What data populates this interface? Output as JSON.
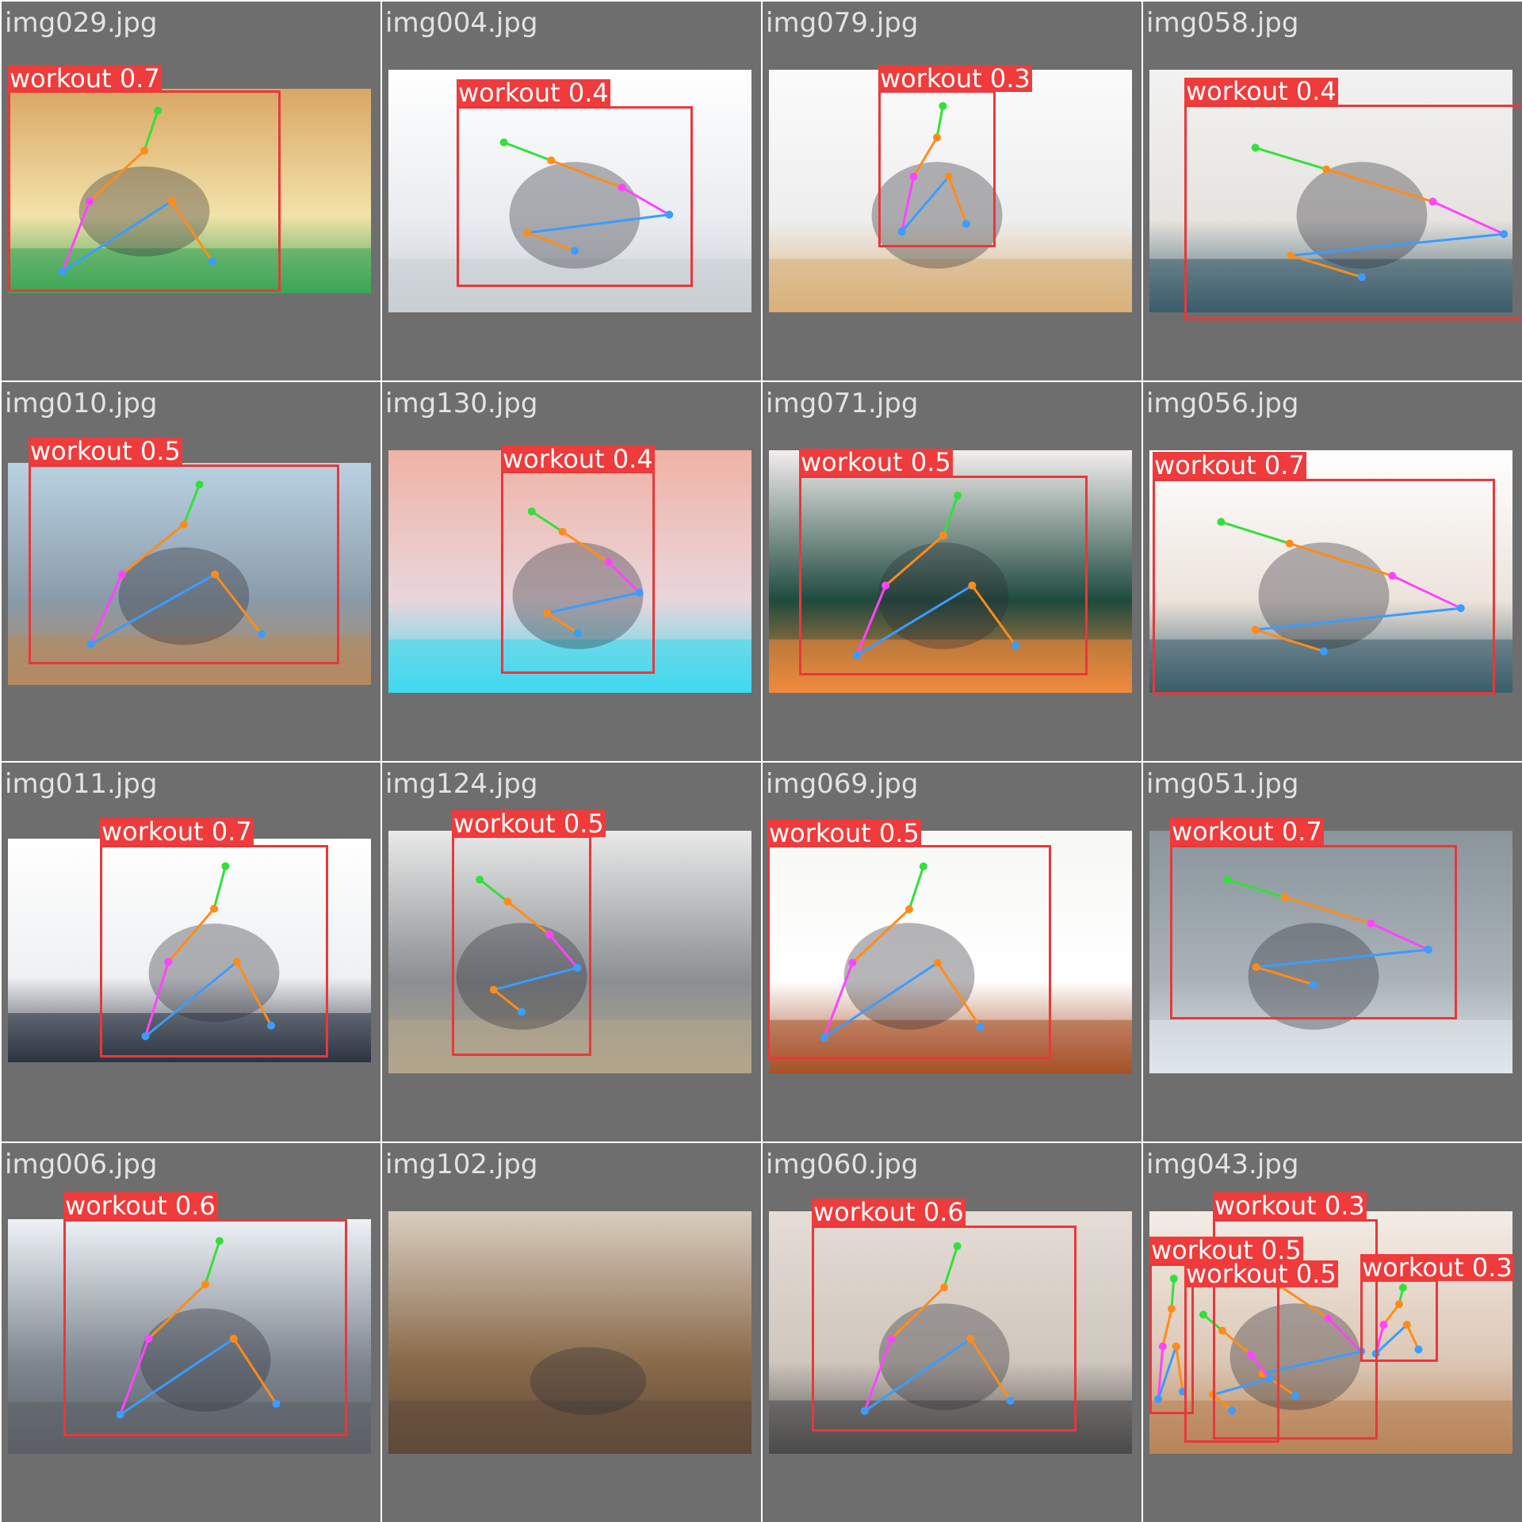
{
  "tiles": [
    {
      "filename": "img029.jpg",
      "detections": [
        {
          "label": "workout 0.7"
        }
      ],
      "photo_tone": [
        "#d9a766",
        "#f2e2a8",
        "#3aa657"
      ]
    },
    {
      "filename": "img004.jpg",
      "detections": [
        {
          "label": "workout 0.4"
        }
      ],
      "photo_tone": [
        "#ffffff",
        "#e9ecef",
        "#c9ced3"
      ]
    },
    {
      "filename": "img079.jpg",
      "detections": [
        {
          "label": "workout 0.3"
        }
      ],
      "photo_tone": [
        "#fbfbfb",
        "#eeeeee",
        "#d8b07a"
      ]
    },
    {
      "filename": "img058.jpg",
      "detections": [
        {
          "label": "workout 0.4"
        }
      ],
      "photo_tone": [
        "#f2f2f2",
        "#e6e3df",
        "#3b5d6b"
      ]
    },
    {
      "filename": "img010.jpg",
      "detections": [
        {
          "label": "workout 0.5"
        }
      ],
      "photo_tone": [
        "#b9d3e3",
        "#8a9aa8",
        "#b58a60"
      ]
    },
    {
      "filename": "img130.jpg",
      "detections": [
        {
          "label": "workout 0.4"
        }
      ],
      "photo_tone": [
        "#f0b3a5",
        "#e8d6dc",
        "#3fd9ee"
      ]
    },
    {
      "filename": "img071.jpg",
      "detections": [
        {
          "label": "workout 0.5"
        }
      ],
      "photo_tone": [
        "#f3eeee",
        "#1f4a3e",
        "#f08a3c"
      ]
    },
    {
      "filename": "img056.jpg",
      "detections": [
        {
          "label": "workout 0.7"
        }
      ],
      "photo_tone": [
        "#ffffff",
        "#ece3db",
        "#3b5e6c"
      ]
    },
    {
      "filename": "img011.jpg",
      "detections": [
        {
          "label": "workout 0.7"
        }
      ],
      "photo_tone": [
        "#ffffff",
        "#eef0f2",
        "#2c3442"
      ]
    },
    {
      "filename": "img124.jpg",
      "detections": [
        {
          "label": "workout 0.5"
        }
      ],
      "photo_tone": [
        "#e9e9e9",
        "#8b8f92",
        "#b3a58c"
      ]
    },
    {
      "filename": "img069.jpg",
      "detections": [
        {
          "label": "workout 0.5"
        }
      ],
      "photo_tone": [
        "#f7f7f5",
        "#ffffff",
        "#a8522a"
      ]
    },
    {
      "filename": "img051.jpg",
      "detections": [
        {
          "label": "workout 0.7"
        }
      ],
      "photo_tone": [
        "#8a959c",
        "#a9b3b8",
        "#dfe6ec"
      ]
    },
    {
      "filename": "img006.jpg",
      "detections": [
        {
          "label": "workout 0.6"
        }
      ],
      "photo_tone": [
        "#eef2f6",
        "#7d8690",
        "#5c6066"
      ]
    },
    {
      "filename": "img102.jpg",
      "detections": [],
      "photo_tone": [
        "#d9cdbf",
        "#8a6b4b",
        "#5e4a3a"
      ]
    },
    {
      "filename": "img060.jpg",
      "detections": [
        {
          "label": "workout 0.6"
        }
      ],
      "photo_tone": [
        "#e5ddd6",
        "#cfc6bd",
        "#4a4a4a"
      ]
    },
    {
      "filename": "img043.jpg",
      "detections": [
        {
          "label": "workout 0.3"
        },
        {
          "label": "workout 0.5"
        },
        {
          "label": "workout 0.5"
        },
        {
          "label": "workout 0.3"
        }
      ],
      "photo_tone": [
        "#f3ece6",
        "#dcc7b5",
        "#b88457"
      ]
    }
  ]
}
